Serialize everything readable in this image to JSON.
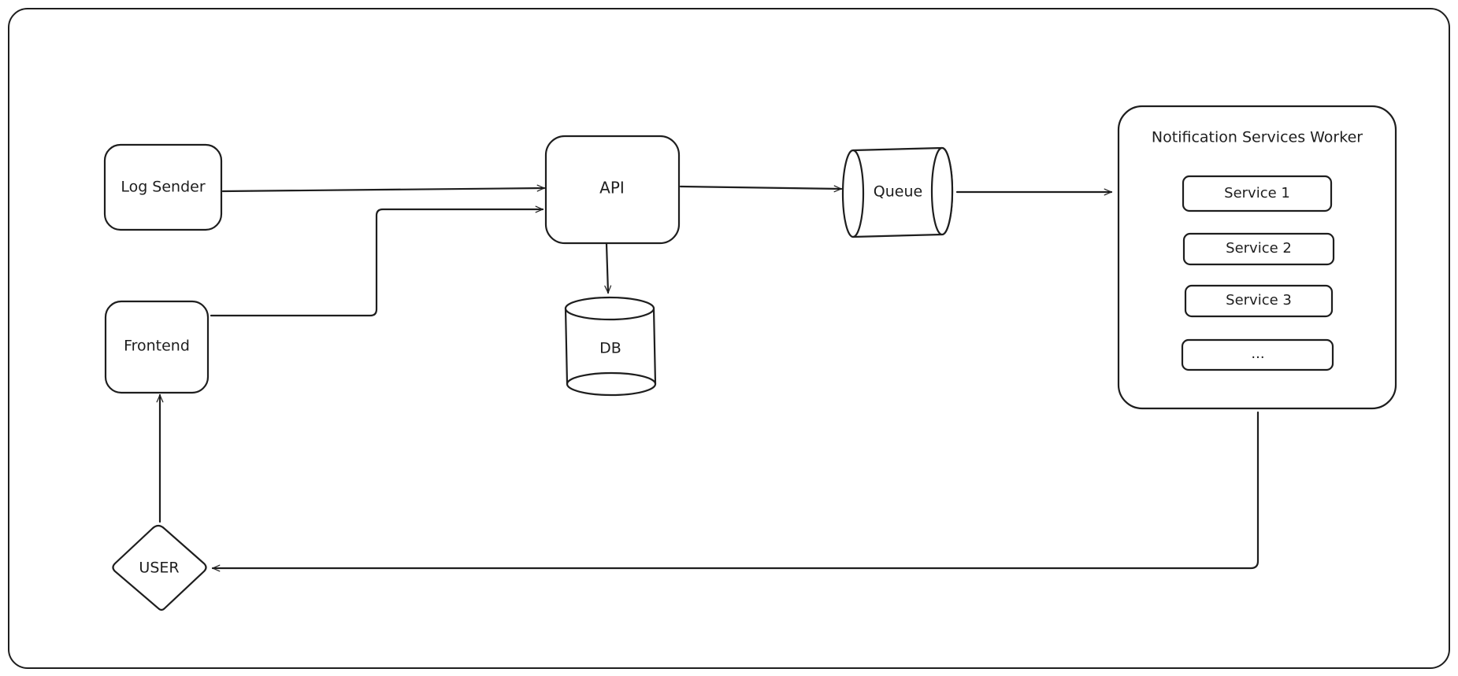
{
  "diagram": {
    "nodes": {
      "log_sender": {
        "label": "Log Sender",
        "shape": "rounded-rect"
      },
      "frontend": {
        "label": "Frontend",
        "shape": "rounded-rect"
      },
      "user": {
        "label": "USER",
        "shape": "diamond"
      },
      "api": {
        "label": "API",
        "shape": "rounded-rect"
      },
      "db": {
        "label": "DB",
        "shape": "cylinder"
      },
      "queue": {
        "label": "Queue",
        "shape": "horizontal-cylinder"
      },
      "worker": {
        "label": "Notification Services Worker",
        "shape": "rounded-rect",
        "services": [
          "Service 1",
          "Service 2",
          "Service 3",
          "..."
        ]
      }
    },
    "edges": [
      {
        "from": "Log Sender",
        "to": "API"
      },
      {
        "from": "Frontend",
        "to": "API"
      },
      {
        "from": "API",
        "to": "DB"
      },
      {
        "from": "API",
        "to": "Queue"
      },
      {
        "from": "Queue",
        "to": "Notification Services Worker"
      },
      {
        "from": "Notification Services Worker",
        "to": "USER"
      },
      {
        "from": "USER",
        "to": "Frontend"
      }
    ],
    "colors": {
      "stroke": "#1e1e1e",
      "background": "#ffffff"
    }
  }
}
